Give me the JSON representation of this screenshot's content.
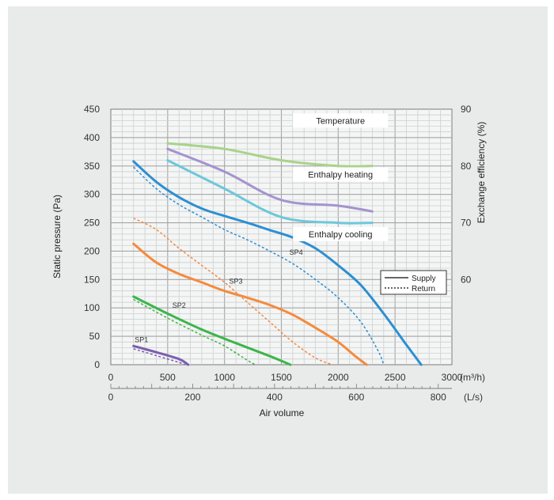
{
  "chart_data": {
    "type": "line",
    "y_left": {
      "label": "Static pressure (Pa)",
      "range": [
        0,
        450
      ],
      "ticks": [
        0,
        50,
        100,
        150,
        200,
        250,
        300,
        350,
        400,
        450
      ]
    },
    "y_right": {
      "label": "Exchange efficiency (%)",
      "ticks": [
        60,
        70,
        80,
        90
      ],
      "range": [
        45,
        90
      ]
    },
    "x_primary": {
      "unit": "(m³/h)",
      "range": [
        0,
        3000
      ],
      "ticks": [
        0,
        500,
        1000,
        1500,
        2000,
        2500,
        3000
      ]
    },
    "x_secondary": {
      "unit": "(L/s)",
      "ticks": [
        0,
        200,
        400,
        600,
        800
      ]
    },
    "xlabel": "Air volume",
    "grid": true,
    "legend": {
      "position": "right",
      "entries": [
        {
          "label": "Supply",
          "style": "solid"
        },
        {
          "label": "Return",
          "style": "dashed"
        }
      ]
    },
    "pressure_series": [
      {
        "name": "SP1",
        "color": "#7a5fb0",
        "supply": [
          [
            200,
            33
          ],
          [
            400,
            22
          ],
          [
            600,
            10
          ],
          [
            680,
            0
          ]
        ],
        "return": [
          [
            200,
            28
          ],
          [
            400,
            16
          ],
          [
            600,
            4
          ],
          [
            650,
            0
          ]
        ]
      },
      {
        "name": "SP2",
        "color": "#3cb54a",
        "supply": [
          [
            200,
            120
          ],
          [
            500,
            90
          ],
          [
            800,
            62
          ],
          [
            1100,
            38
          ],
          [
            1400,
            15
          ],
          [
            1580,
            0
          ]
        ],
        "return": [
          [
            200,
            115
          ],
          [
            500,
            82
          ],
          [
            800,
            52
          ],
          [
            1000,
            33
          ],
          [
            1200,
            8
          ],
          [
            1270,
            0
          ]
        ]
      },
      {
        "name": "SP3",
        "color": "#f58a3c",
        "supply": [
          [
            200,
            213
          ],
          [
            400,
            180
          ],
          [
            600,
            160
          ],
          [
            800,
            145
          ],
          [
            1000,
            130
          ],
          [
            1200,
            118
          ],
          [
            1400,
            105
          ],
          [
            1600,
            88
          ],
          [
            1800,
            65
          ],
          [
            2000,
            40
          ],
          [
            2150,
            15
          ],
          [
            2250,
            0
          ]
        ],
        "return": [
          [
            200,
            258
          ],
          [
            400,
            238
          ],
          [
            600,
            205
          ],
          [
            800,
            175
          ],
          [
            1000,
            145
          ],
          [
            1200,
            110
          ],
          [
            1400,
            75
          ],
          [
            1600,
            40
          ],
          [
            1800,
            12
          ],
          [
            1950,
            0
          ]
        ]
      },
      {
        "name": "SP4",
        "color": "#2b8fd3",
        "supply": [
          [
            200,
            358
          ],
          [
            400,
            322
          ],
          [
            600,
            295
          ],
          [
            800,
            275
          ],
          [
            1000,
            262
          ],
          [
            1200,
            250
          ],
          [
            1400,
            237
          ],
          [
            1600,
            224
          ],
          [
            1800,
            205
          ],
          [
            2000,
            175
          ],
          [
            2200,
            140
          ],
          [
            2400,
            90
          ],
          [
            2600,
            35
          ],
          [
            2730,
            0
          ]
        ],
        "return": [
          [
            200,
            348
          ],
          [
            400,
            310
          ],
          [
            600,
            282
          ],
          [
            800,
            260
          ],
          [
            1000,
            238
          ],
          [
            1200,
            220
          ],
          [
            1400,
            200
          ],
          [
            1600,
            178
          ],
          [
            1800,
            150
          ],
          [
            2000,
            118
          ],
          [
            2200,
            75
          ],
          [
            2350,
            25
          ],
          [
            2400,
            0
          ]
        ]
      }
    ],
    "efficiency_series": [
      {
        "name": "Temperature",
        "color": "#a8d38a",
        "points": [
          [
            500,
            84
          ],
          [
            1000,
            83
          ],
          [
            1500,
            81
          ],
          [
            2000,
            80
          ],
          [
            2300,
            80
          ]
        ]
      },
      {
        "name": "Enthalpy heating",
        "color": "#a493cf",
        "points": [
          [
            500,
            83
          ],
          [
            1000,
            79
          ],
          [
            1500,
            74
          ],
          [
            2000,
            73
          ],
          [
            2300,
            72
          ]
        ]
      },
      {
        "name": "Enthalpy cooling",
        "color": "#6cc8da",
        "points": [
          [
            500,
            81
          ],
          [
            1000,
            76
          ],
          [
            1500,
            71
          ],
          [
            2000,
            70
          ],
          [
            2300,
            70
          ]
        ]
      }
    ]
  }
}
